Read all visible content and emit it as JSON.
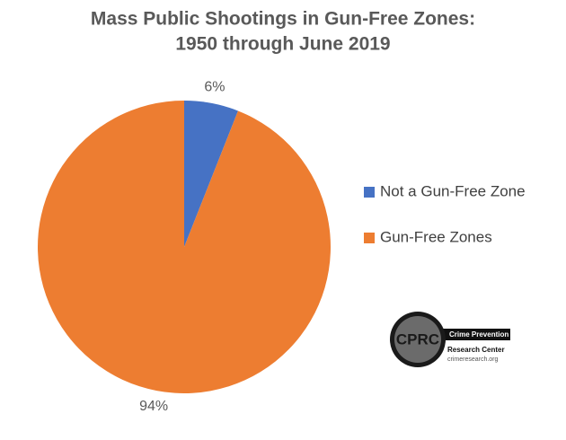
{
  "chart_data": {
    "type": "pie",
    "title": [
      "Mass Public Shootings in Gun-Free Zones:",
      "1950 through June 2019"
    ],
    "categories": [
      "Not a Gun-Free Zone",
      "Gun-Free Zones"
    ],
    "values": [
      6,
      94
    ],
    "value_labels": [
      "6%",
      "94%"
    ],
    "colors": [
      "#4672c4",
      "#ed7d31"
    ],
    "legend": "right"
  },
  "logo": {
    "mark": "CPRC",
    "name_line1": "Crime Prevention",
    "name_line2": "Research Center",
    "url": "crimeresearch.org"
  }
}
